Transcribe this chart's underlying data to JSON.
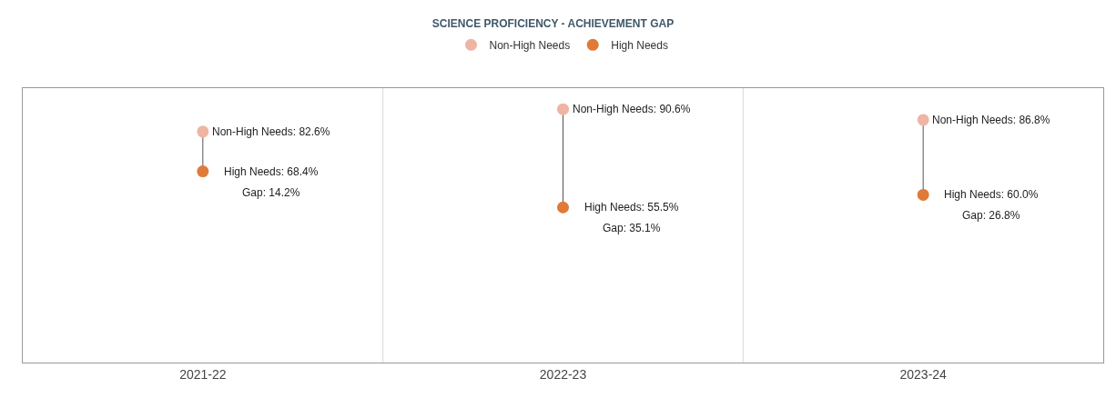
{
  "chart_data": {
    "type": "scatter",
    "title": "SCIENCE PROFICIENCY - ACHIEVEMENT GAP",
    "categories": [
      "2021-22",
      "2022-23",
      "2023-24"
    ],
    "series": [
      {
        "name": "Non-High Needs",
        "color": "#f0b4a2",
        "values": [
          82.6,
          90.6,
          86.8
        ],
        "value_labels": [
          "Non-High Needs: 82.6%",
          "Non-High Needs: 90.6%",
          "Non-High Needs: 86.8%"
        ]
      },
      {
        "name": "High Needs",
        "color": "#e07a38",
        "values": [
          68.4,
          55.5,
          60.0
        ],
        "value_labels": [
          "High Needs: 68.4%",
          "High Needs: 55.5%",
          "High Needs: 60.0%"
        ]
      }
    ],
    "tick_labels": "x",
    "grid": "x",
    "legend": "top",
    "marker": "circle",
    "annotations": [
      "Gap: 14.2%",
      "Gap: 35.1%",
      "Gap: 26.8%"
    ]
  }
}
